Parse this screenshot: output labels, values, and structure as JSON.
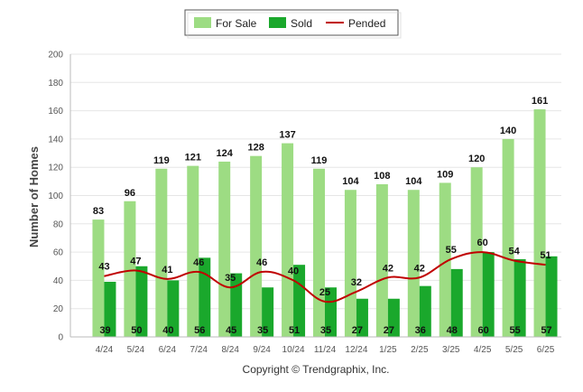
{
  "chart_data": {
    "type": "bar",
    "categories": [
      "4/24",
      "5/24",
      "6/24",
      "7/24",
      "8/24",
      "9/24",
      "10/24",
      "11/24",
      "12/24",
      "1/25",
      "2/25",
      "3/25",
      "4/25",
      "5/25",
      "6/25"
    ],
    "series": [
      {
        "name": "For Sale",
        "kind": "bar",
        "color": "#9ddc83",
        "values": [
          83,
          96,
          119,
          121,
          124,
          128,
          137,
          119,
          104,
          108,
          104,
          109,
          120,
          140,
          161
        ]
      },
      {
        "name": "Sold",
        "kind": "bar",
        "color": "#1aa82c",
        "values": [
          39,
          50,
          40,
          56,
          45,
          35,
          51,
          35,
          27,
          27,
          36,
          48,
          60,
          55,
          57
        ]
      },
      {
        "name": "Pended",
        "kind": "line",
        "color": "#c00000",
        "values": [
          43,
          47,
          41,
          46,
          35,
          46,
          40,
          25,
          32,
          42,
          42,
          55,
          60,
          54,
          51
        ]
      }
    ],
    "ylabel": "Number of Homes",
    "xlabel": "",
    "ylim": [
      0,
      200
    ],
    "yticks": [
      0,
      20,
      40,
      60,
      80,
      100,
      120,
      140,
      160,
      180,
      200
    ],
    "grid": true,
    "legend": "top-center",
    "footer": "Copyright © Trendgraphix, Inc."
  }
}
